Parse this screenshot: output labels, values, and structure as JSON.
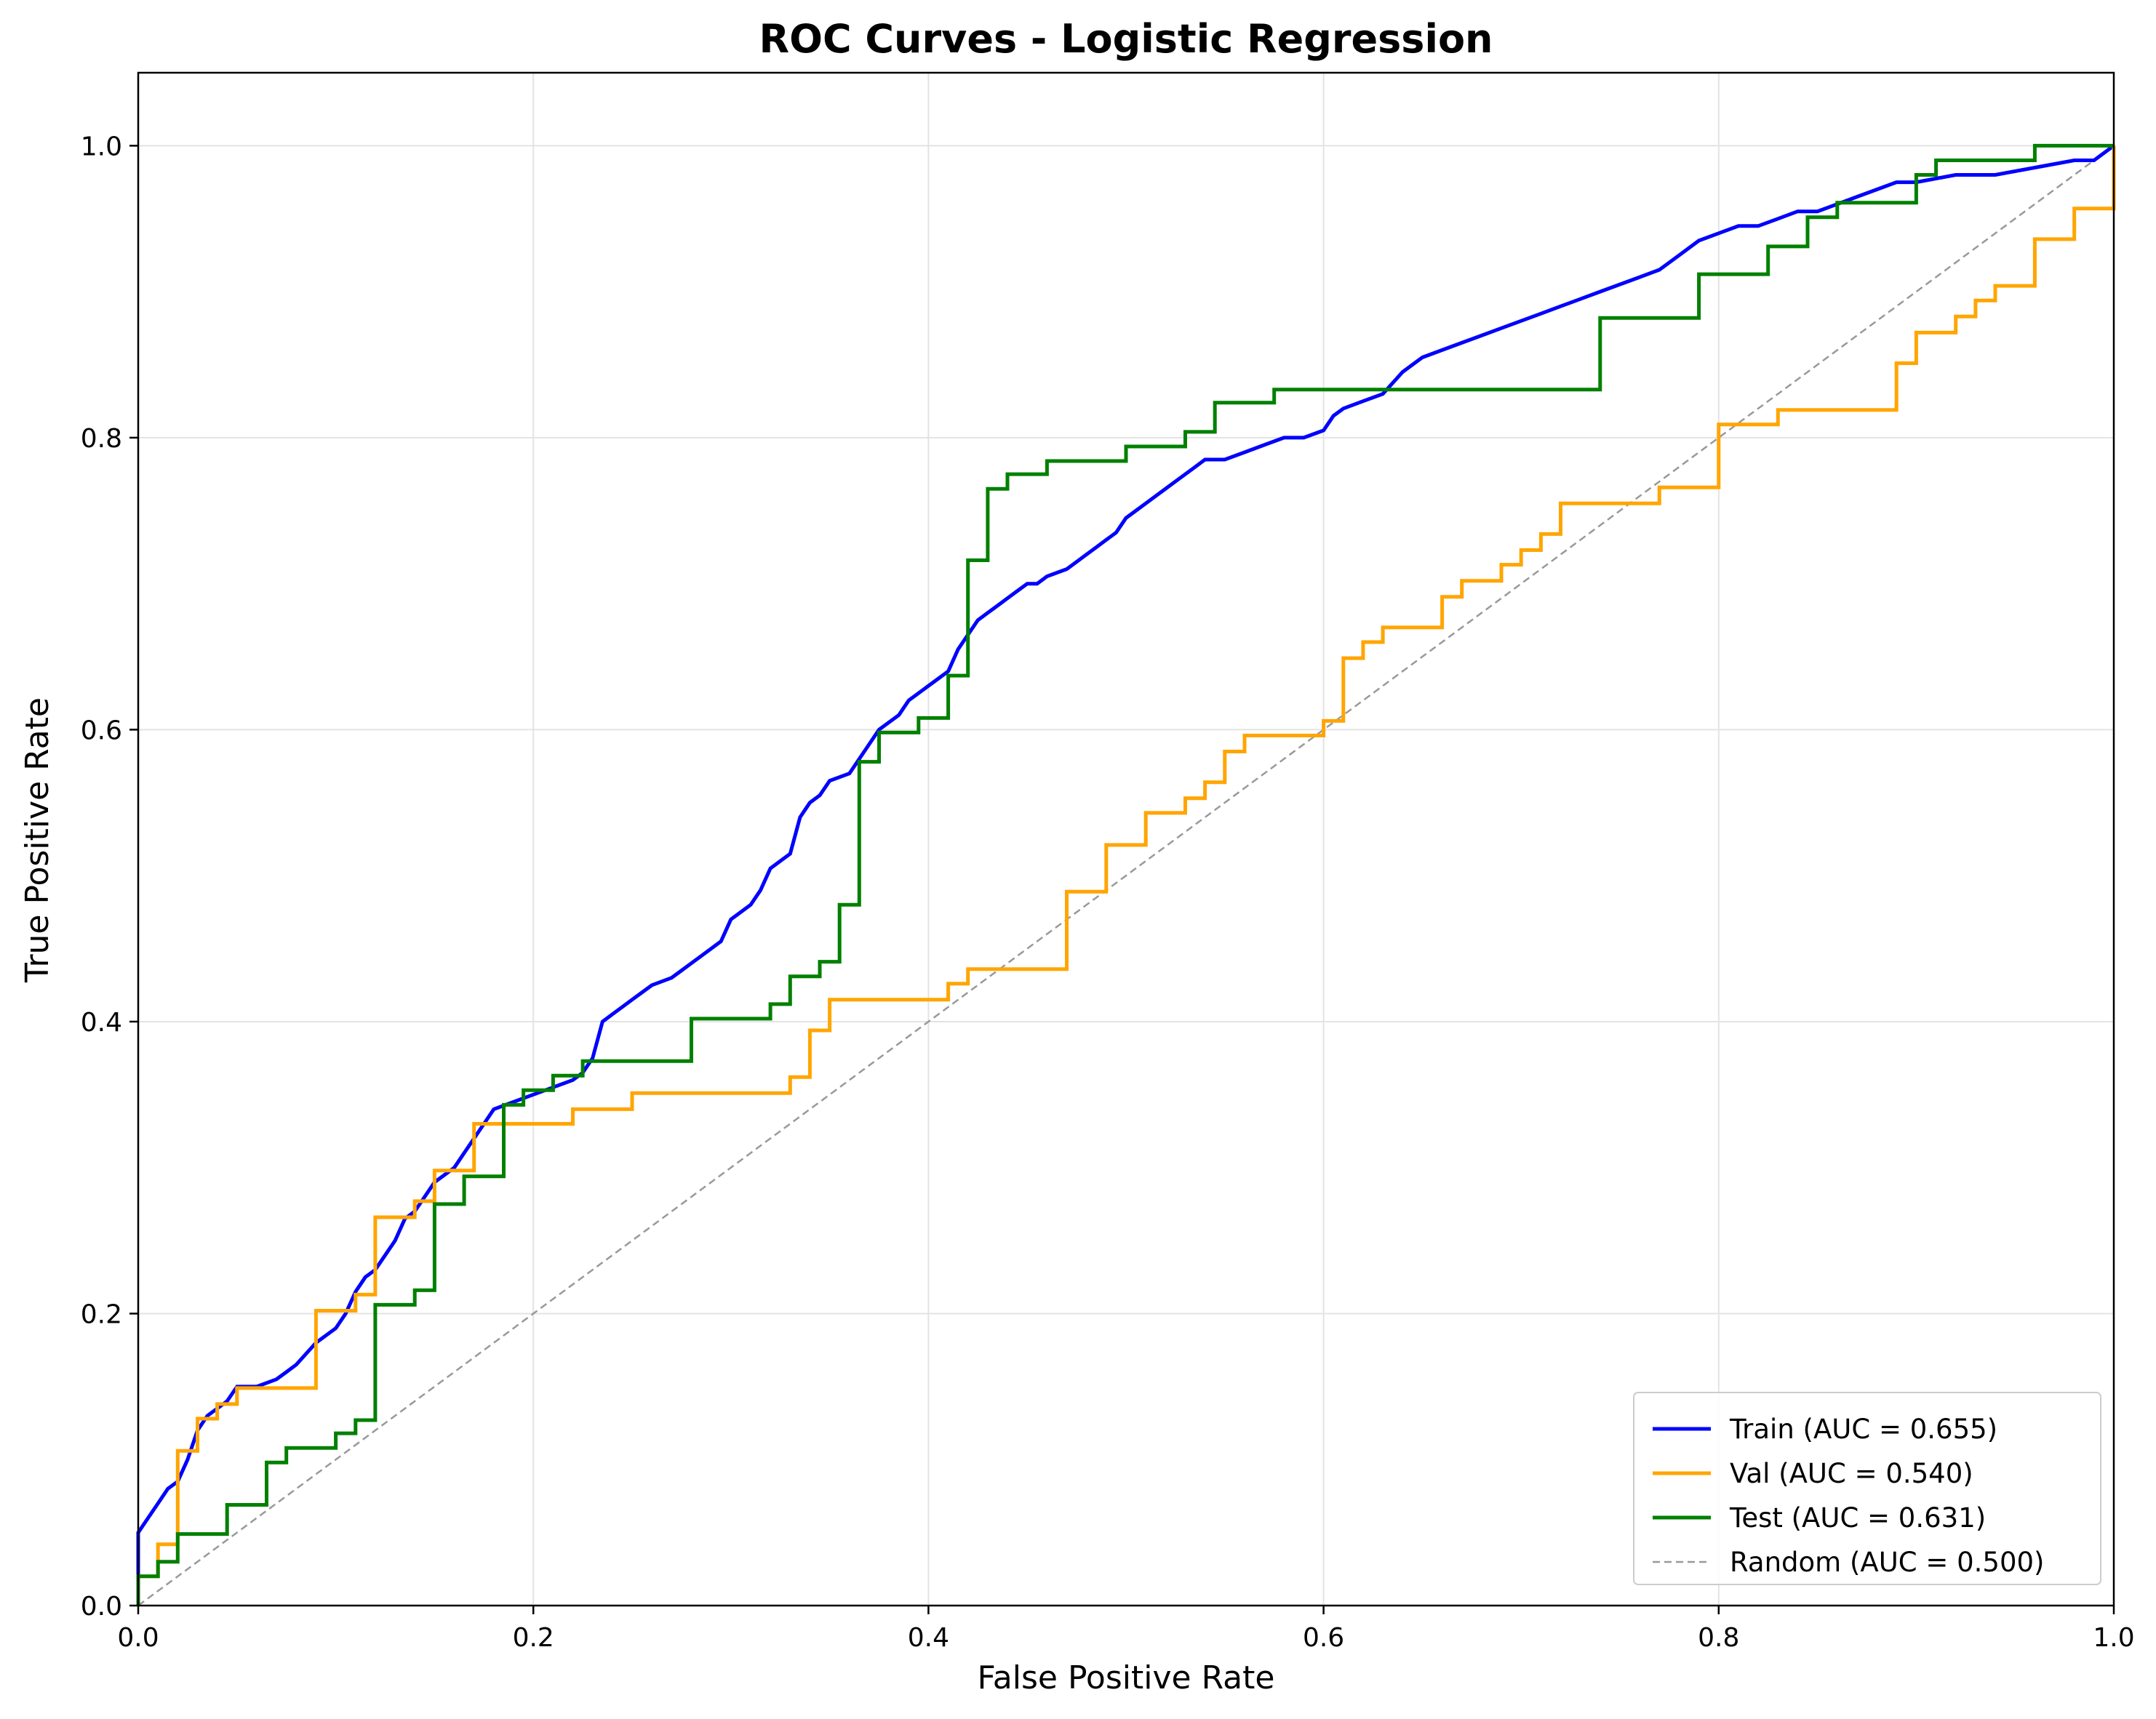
{
  "chart_data": {
    "type": "line",
    "title": "ROC Curves - Logistic Regression",
    "xlabel": "False Positive Rate",
    "ylabel": "True Positive Rate",
    "xlim": [
      0.0,
      1.0
    ],
    "ylim": [
      0.0,
      1.05
    ],
    "xticks": [
      "0.0",
      "0.2",
      "0.4",
      "0.6",
      "0.8",
      "1.0"
    ],
    "yticks": [
      "0.0",
      "0.2",
      "0.4",
      "0.6",
      "0.8",
      "1.0"
    ],
    "grid": true,
    "legend_position": "lower-right",
    "series": [
      {
        "name": "Train (AUC = 0.655)",
        "color": "#0000ff",
        "style": "solid",
        "x": [
          0.0,
          0.0,
          0.005,
          0.01,
          0.015,
          0.02,
          0.025,
          0.03,
          0.035,
          0.04,
          0.045,
          0.05,
          0.06,
          0.07,
          0.075,
          0.08,
          0.09,
          0.095,
          0.1,
          0.105,
          0.11,
          0.115,
          0.12,
          0.125,
          0.13,
          0.135,
          0.14,
          0.145,
          0.15,
          0.155,
          0.16,
          0.165,
          0.17,
          0.175,
          0.18,
          0.19,
          0.2,
          0.21,
          0.22,
          0.225,
          0.23,
          0.235,
          0.24,
          0.245,
          0.25,
          0.255,
          0.26,
          0.27,
          0.275,
          0.28,
          0.285,
          0.29,
          0.295,
          0.3,
          0.31,
          0.315,
          0.32,
          0.325,
          0.33,
          0.335,
          0.34,
          0.345,
          0.35,
          0.36,
          0.365,
          0.37,
          0.375,
          0.38,
          0.385,
          0.39,
          0.395,
          0.4,
          0.405,
          0.41,
          0.415,
          0.42,
          0.425,
          0.43,
          0.435,
          0.44,
          0.445,
          0.45,
          0.455,
          0.46,
          0.47,
          0.475,
          0.48,
          0.485,
          0.49,
          0.495,
          0.5,
          0.505,
          0.51,
          0.515,
          0.52,
          0.525,
          0.53,
          0.535,
          0.54,
          0.55,
          0.56,
          0.57,
          0.58,
          0.59,
          0.6,
          0.605,
          0.61,
          0.62,
          0.63,
          0.64,
          0.65,
          0.66,
          0.67,
          0.68,
          0.69,
          0.7,
          0.71,
          0.72,
          0.73,
          0.74,
          0.75,
          0.76,
          0.77,
          0.78,
          0.79,
          0.8,
          0.81,
          0.82,
          0.83,
          0.84,
          0.85,
          0.86,
          0.87,
          0.88,
          0.89,
          0.9,
          0.92,
          0.94,
          0.96,
          0.98,
          0.99,
          1.0
        ],
        "y": [
          0.0,
          0.05,
          0.06,
          0.07,
          0.08,
          0.085,
          0.1,
          0.12,
          0.13,
          0.135,
          0.14,
          0.15,
          0.15,
          0.155,
          0.16,
          0.165,
          0.18,
          0.185,
          0.19,
          0.2,
          0.215,
          0.225,
          0.23,
          0.24,
          0.25,
          0.265,
          0.27,
          0.28,
          0.29,
          0.295,
          0.3,
          0.31,
          0.32,
          0.33,
          0.34,
          0.345,
          0.35,
          0.355,
          0.36,
          0.365,
          0.375,
          0.4,
          0.405,
          0.41,
          0.415,
          0.42,
          0.425,
          0.43,
          0.435,
          0.44,
          0.445,
          0.45,
          0.455,
          0.47,
          0.48,
          0.49,
          0.505,
          0.51,
          0.515,
          0.54,
          0.55,
          0.555,
          0.565,
          0.57,
          0.58,
          0.59,
          0.6,
          0.605,
          0.61,
          0.62,
          0.625,
          0.63,
          0.635,
          0.64,
          0.655,
          0.665,
          0.675,
          0.68,
          0.685,
          0.69,
          0.695,
          0.7,
          0.7,
          0.705,
          0.71,
          0.715,
          0.72,
          0.725,
          0.73,
          0.735,
          0.745,
          0.75,
          0.755,
          0.76,
          0.765,
          0.77,
          0.775,
          0.78,
          0.785,
          0.785,
          0.79,
          0.795,
          0.8,
          0.8,
          0.805,
          0.815,
          0.82,
          0.825,
          0.83,
          0.845,
          0.855,
          0.86,
          0.865,
          0.87,
          0.875,
          0.88,
          0.885,
          0.89,
          0.895,
          0.9,
          0.905,
          0.91,
          0.915,
          0.925,
          0.935,
          0.94,
          0.945,
          0.945,
          0.95,
          0.955,
          0.955,
          0.96,
          0.965,
          0.97,
          0.975,
          0.975,
          0.98,
          0.98,
          0.985,
          0.99,
          0.99,
          1.0
        ]
      },
      {
        "name": "Val (AUC = 0.540)",
        "color": "#ffa500",
        "style": "solid",
        "x": [
          0.0,
          0.0,
          0.01,
          0.01,
          0.02,
          0.02,
          0.03,
          0.03,
          0.04,
          0.04,
          0.05,
          0.05,
          0.09,
          0.09,
          0.11,
          0.11,
          0.12,
          0.12,
          0.14,
          0.14,
          0.15,
          0.15,
          0.17,
          0.17,
          0.22,
          0.22,
          0.25,
          0.25,
          0.33,
          0.33,
          0.34,
          0.34,
          0.35,
          0.35,
          0.41,
          0.41,
          0.42,
          0.42,
          0.47,
          0.47,
          0.49,
          0.49,
          0.51,
          0.51,
          0.53,
          0.53,
          0.54,
          0.54,
          0.55,
          0.55,
          0.56,
          0.56,
          0.6,
          0.6,
          0.61,
          0.61,
          0.62,
          0.62,
          0.63,
          0.63,
          0.66,
          0.66,
          0.67,
          0.67,
          0.69,
          0.69,
          0.7,
          0.7,
          0.71,
          0.71,
          0.72,
          0.72,
          0.77,
          0.77,
          0.8,
          0.8,
          0.83,
          0.83,
          0.89,
          0.89,
          0.9,
          0.9,
          0.92,
          0.92,
          0.93,
          0.93,
          0.94,
          0.94,
          0.96,
          0.96,
          0.98,
          0.98,
          1.0,
          1.0
        ],
        "y": [
          0.0,
          0.02,
          0.02,
          0.042,
          0.042,
          0.106,
          0.106,
          0.128,
          0.128,
          0.138,
          0.138,
          0.149,
          0.149,
          0.202,
          0.202,
          0.213,
          0.213,
          0.266,
          0.266,
          0.277,
          0.277,
          0.298,
          0.298,
          0.33,
          0.33,
          0.34,
          0.34,
          0.351,
          0.351,
          0.362,
          0.362,
          0.394,
          0.394,
          0.415,
          0.415,
          0.426,
          0.426,
          0.436,
          0.436,
          0.489,
          0.489,
          0.521,
          0.521,
          0.543,
          0.543,
          0.553,
          0.553,
          0.564,
          0.564,
          0.585,
          0.585,
          0.596,
          0.596,
          0.606,
          0.606,
          0.649,
          0.649,
          0.66,
          0.66,
          0.67,
          0.67,
          0.691,
          0.691,
          0.702,
          0.702,
          0.713,
          0.713,
          0.723,
          0.723,
          0.734,
          0.734,
          0.755,
          0.755,
          0.766,
          0.766,
          0.809,
          0.809,
          0.819,
          0.819,
          0.851,
          0.851,
          0.872,
          0.872,
          0.883,
          0.883,
          0.894,
          0.894,
          0.904,
          0.904,
          0.936,
          0.936,
          0.957,
          0.957,
          1.0
        ]
      },
      {
        "name": "Test (AUC = 0.631)",
        "color": "#008000",
        "style": "solid",
        "x": [
          0.0,
          0.0,
          0.01,
          0.01,
          0.02,
          0.02,
          0.045,
          0.045,
          0.065,
          0.065,
          0.075,
          0.075,
          0.1,
          0.1,
          0.11,
          0.11,
          0.12,
          0.12,
          0.14,
          0.14,
          0.15,
          0.15,
          0.165,
          0.165,
          0.185,
          0.185,
          0.195,
          0.195,
          0.21,
          0.21,
          0.225,
          0.225,
          0.28,
          0.28,
          0.32,
          0.32,
          0.33,
          0.33,
          0.345,
          0.345,
          0.355,
          0.355,
          0.365,
          0.365,
          0.375,
          0.375,
          0.395,
          0.395,
          0.41,
          0.41,
          0.42,
          0.42,
          0.43,
          0.43,
          0.44,
          0.44,
          0.46,
          0.46,
          0.5,
          0.5,
          0.53,
          0.53,
          0.545,
          0.545,
          0.575,
          0.575,
          0.74,
          0.74,
          0.79,
          0.79,
          0.825,
          0.825,
          0.845,
          0.845,
          0.86,
          0.86,
          0.9,
          0.9,
          0.91,
          0.91,
          0.93,
          0.93,
          0.96,
          0.96,
          0.98,
          0.98,
          1.0
        ],
        "y": [
          0.0,
          0.02,
          0.02,
          0.03,
          0.03,
          0.049,
          0.049,
          0.069,
          0.069,
          0.098,
          0.098,
          0.108,
          0.108,
          0.118,
          0.118,
          0.127,
          0.127,
          0.206,
          0.206,
          0.216,
          0.216,
          0.275,
          0.275,
          0.294,
          0.294,
          0.343,
          0.343,
          0.353,
          0.353,
          0.363,
          0.363,
          0.373,
          0.373,
          0.402,
          0.402,
          0.412,
          0.412,
          0.431,
          0.431,
          0.441,
          0.441,
          0.48,
          0.48,
          0.578,
          0.578,
          0.598,
          0.598,
          0.608,
          0.608,
          0.637,
          0.637,
          0.716,
          0.716,
          0.765,
          0.765,
          0.775,
          0.775,
          0.784,
          0.784,
          0.794,
          0.794,
          0.804,
          0.804,
          0.824,
          0.824,
          0.833,
          0.833,
          0.882,
          0.882,
          0.912,
          0.912,
          0.931,
          0.931,
          0.951,
          0.951,
          0.961,
          0.961,
          0.98,
          0.98,
          0.99,
          0.99,
          0.99,
          0.99,
          1.0,
          1.0,
          1.0,
          1.0
        ]
      },
      {
        "name": "Random (AUC = 0.500)",
        "color": "#999999",
        "style": "dashed",
        "x": [
          0.0,
          1.0
        ],
        "y": [
          0.0,
          1.0
        ]
      }
    ]
  }
}
